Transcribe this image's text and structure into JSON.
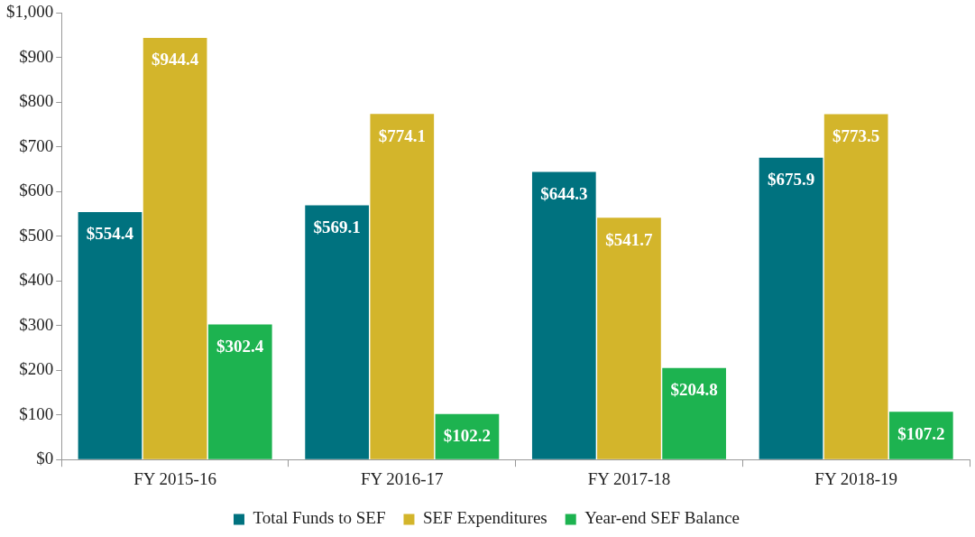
{
  "chart_data": {
    "type": "bar",
    "categories": [
      "FY 2015-16",
      "FY 2016-17",
      "FY 2017-18",
      "FY 2018-19"
    ],
    "series": [
      {
        "name": "Total Funds to SEF",
        "color": "#00727f",
        "values": [
          554.4,
          569.1,
          644.3,
          675.9
        ],
        "value_labels": [
          "$554.4",
          "$569.1",
          "$644.3",
          "$675.9"
        ]
      },
      {
        "name": "SEF Expenditures",
        "color": "#d3b52b",
        "values": [
          944.4,
          774.1,
          541.7,
          773.5
        ],
        "value_labels": [
          "$944.4",
          "$774.1",
          "$541.7",
          "$773.5"
        ]
      },
      {
        "name": "Year-end SEF Balance",
        "color": "#1db350",
        "values": [
          302.4,
          102.2,
          204.8,
          107.2
        ],
        "value_labels": [
          "$302.4",
          "$102.2",
          "$204.8",
          "$107.2"
        ]
      }
    ],
    "ylim": [
      0,
      1000
    ],
    "yticks": [
      {
        "value": 0,
        "label": "$0"
      },
      {
        "value": 100,
        "label": "$100"
      },
      {
        "value": 200,
        "label": "$200"
      },
      {
        "value": 300,
        "label": "$300"
      },
      {
        "value": 400,
        "label": "$400"
      },
      {
        "value": 500,
        "label": "$500"
      },
      {
        "value": 600,
        "label": "$600"
      },
      {
        "value": 700,
        "label": "$700"
      },
      {
        "value": 800,
        "label": "$800"
      },
      {
        "value": 900,
        "label": "$900"
      },
      {
        "value": 1000,
        "label": "$1,000"
      }
    ],
    "grid": false,
    "legend": "bottom"
  }
}
